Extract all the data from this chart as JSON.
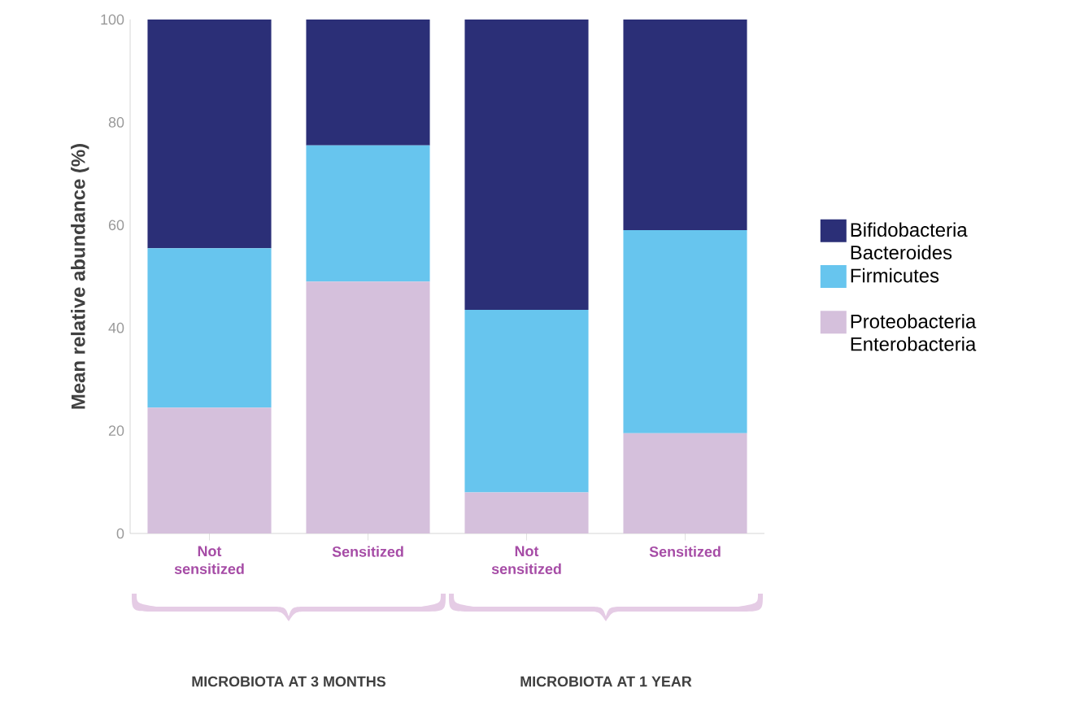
{
  "chart_data": {
    "type": "bar",
    "stacked": true,
    "ylabel": "Mean relative abundance (%)",
    "categories": [
      "Not sensitized",
      "Sensitized",
      "Not sensitized",
      "Sensitized"
    ],
    "series": [
      {
        "name": "Proteobacteria Enterobacteria",
        "color": "#d5c0dc",
        "values": [
          24.5,
          49,
          8,
          19.5
        ]
      },
      {
        "name": "Firmicutes",
        "color": "#67c5ee",
        "values": [
          31,
          26.5,
          35.5,
          39.5
        ]
      },
      {
        "name": "Bifidobacteria Bacteroides",
        "color": "#2b2f77",
        "values": [
          44.5,
          24.5,
          56.5,
          41
        ]
      }
    ],
    "ylim": [
      0,
      100
    ],
    "yticks": [
      0,
      20,
      40,
      60,
      80,
      100
    ],
    "legend": "right",
    "grid": false,
    "annotations": [
      "MICROBIOTA AT 3 MONTHS",
      "MICROBIOTA AT 1 YEAR"
    ]
  }
}
